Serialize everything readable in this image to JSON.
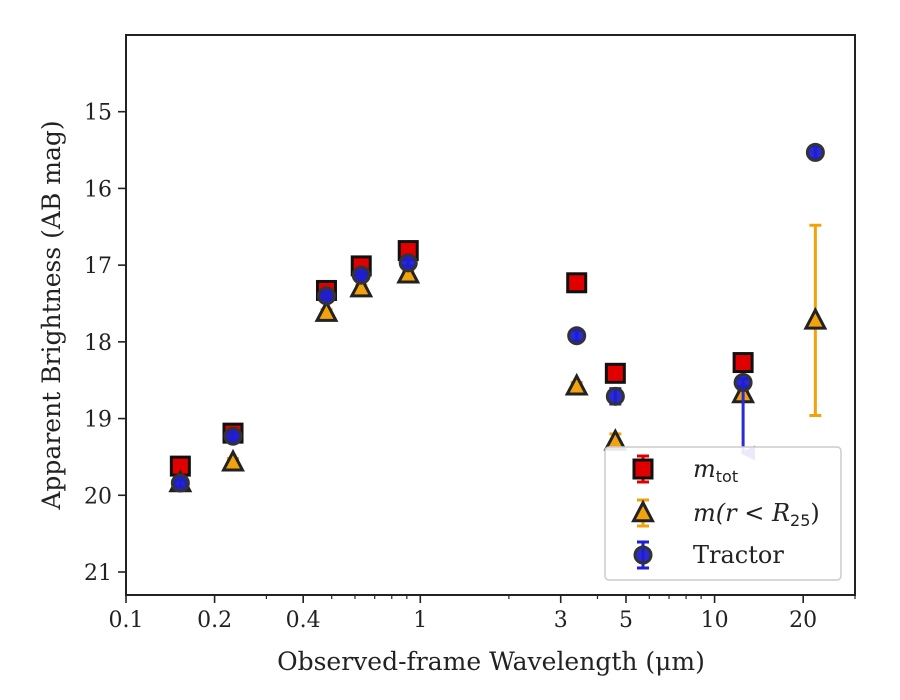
{
  "chart_data": {
    "type": "scatter",
    "title": "",
    "xlabel": "Observed-frame Wavelength (μm)",
    "ylabel": "Apparent Brightness (AB mag)",
    "xscale": "log",
    "xlim": [
      0.1,
      30
    ],
    "ylim": [
      21.3,
      14.0
    ],
    "y_inverted": true,
    "xticks": [
      {
        "value": 0.1,
        "label": "0.1"
      },
      {
        "value": 0.2,
        "label": "0.2"
      },
      {
        "value": 0.4,
        "label": "0.4"
      },
      {
        "value": 1,
        "label": "1"
      },
      {
        "value": 3,
        "label": "3"
      },
      {
        "value": 5,
        "label": "5"
      },
      {
        "value": 10,
        "label": "10"
      },
      {
        "value": 20,
        "label": "20"
      }
    ],
    "yticks": [
      {
        "value": 15,
        "label": "15"
      },
      {
        "value": 16,
        "label": "16"
      },
      {
        "value": 17,
        "label": "17"
      },
      {
        "value": 18,
        "label": "18"
      },
      {
        "value": 19,
        "label": "19"
      },
      {
        "value": 20,
        "label": "20"
      },
      {
        "value": 21,
        "label": "21"
      }
    ],
    "legend_position": "lower right",
    "grid": false,
    "series": [
      {
        "name": "m_tot",
        "legend_main": "m",
        "legend_sub": "tot",
        "marker": "square",
        "color": "#e00000",
        "edge": "#111111",
        "points": [
          {
            "x": 0.153,
            "y": 19.62,
            "err": 0.05
          },
          {
            "x": 0.231,
            "y": 19.19,
            "err": 0.05
          },
          {
            "x": 0.48,
            "y": 17.33,
            "err": 0.04
          },
          {
            "x": 0.63,
            "y": 17.01,
            "err": 0.04
          },
          {
            "x": 0.91,
            "y": 16.81,
            "err": 0.04
          },
          {
            "x": 3.4,
            "y": 17.23,
            "err": 0.04
          },
          {
            "x": 4.6,
            "y": 18.41,
            "err": 0.05
          },
          {
            "x": 12.5,
            "y": 18.27,
            "err": 0.1
          }
        ]
      },
      {
        "name": "m(r < R25)",
        "legend_main": "m(r < R",
        "legend_sub": "25",
        "legend_tail": ")",
        "marker": "triangle",
        "color": "#f2a20c",
        "edge": "#222222",
        "points": [
          {
            "x": 0.153,
            "y": 19.84,
            "err": 0.05
          },
          {
            "x": 0.231,
            "y": 19.57,
            "err": 0.05
          },
          {
            "x": 0.48,
            "y": 17.62,
            "err": 0.04
          },
          {
            "x": 0.63,
            "y": 17.3,
            "err": 0.04
          },
          {
            "x": 0.91,
            "y": 17.12,
            "err": 0.04
          },
          {
            "x": 3.4,
            "y": 18.58,
            "err": 0.05
          },
          {
            "x": 4.6,
            "y": 19.3,
            "err": 0.1
          },
          {
            "x": 12.5,
            "y": 18.68,
            "err": 0.05
          },
          {
            "x": 22.0,
            "y": 17.72,
            "err": 1.24
          }
        ]
      },
      {
        "name": "Tractor",
        "legend_main": "Tractor",
        "marker": "circle",
        "color": "#1f1fd0",
        "edge": "#333333",
        "points": [
          {
            "x": 0.153,
            "y": 19.84,
            "err": 0.05
          },
          {
            "x": 0.231,
            "y": 19.23,
            "err": 0.05
          },
          {
            "x": 0.48,
            "y": 17.4,
            "err": 0.04
          },
          {
            "x": 0.63,
            "y": 17.13,
            "err": 0.04
          },
          {
            "x": 0.91,
            "y": 16.97,
            "err": 0.04
          },
          {
            "x": 3.4,
            "y": 17.92,
            "err": 0.07
          },
          {
            "x": 4.6,
            "y": 18.71,
            "err": 0.1
          },
          {
            "x": 12.5,
            "y": 18.53,
            "err": 0.05,
            "upper_limit": true,
            "arrow_to": 19.45
          },
          {
            "x": 22.0,
            "y": 15.53,
            "err": 0.08
          }
        ]
      }
    ]
  }
}
